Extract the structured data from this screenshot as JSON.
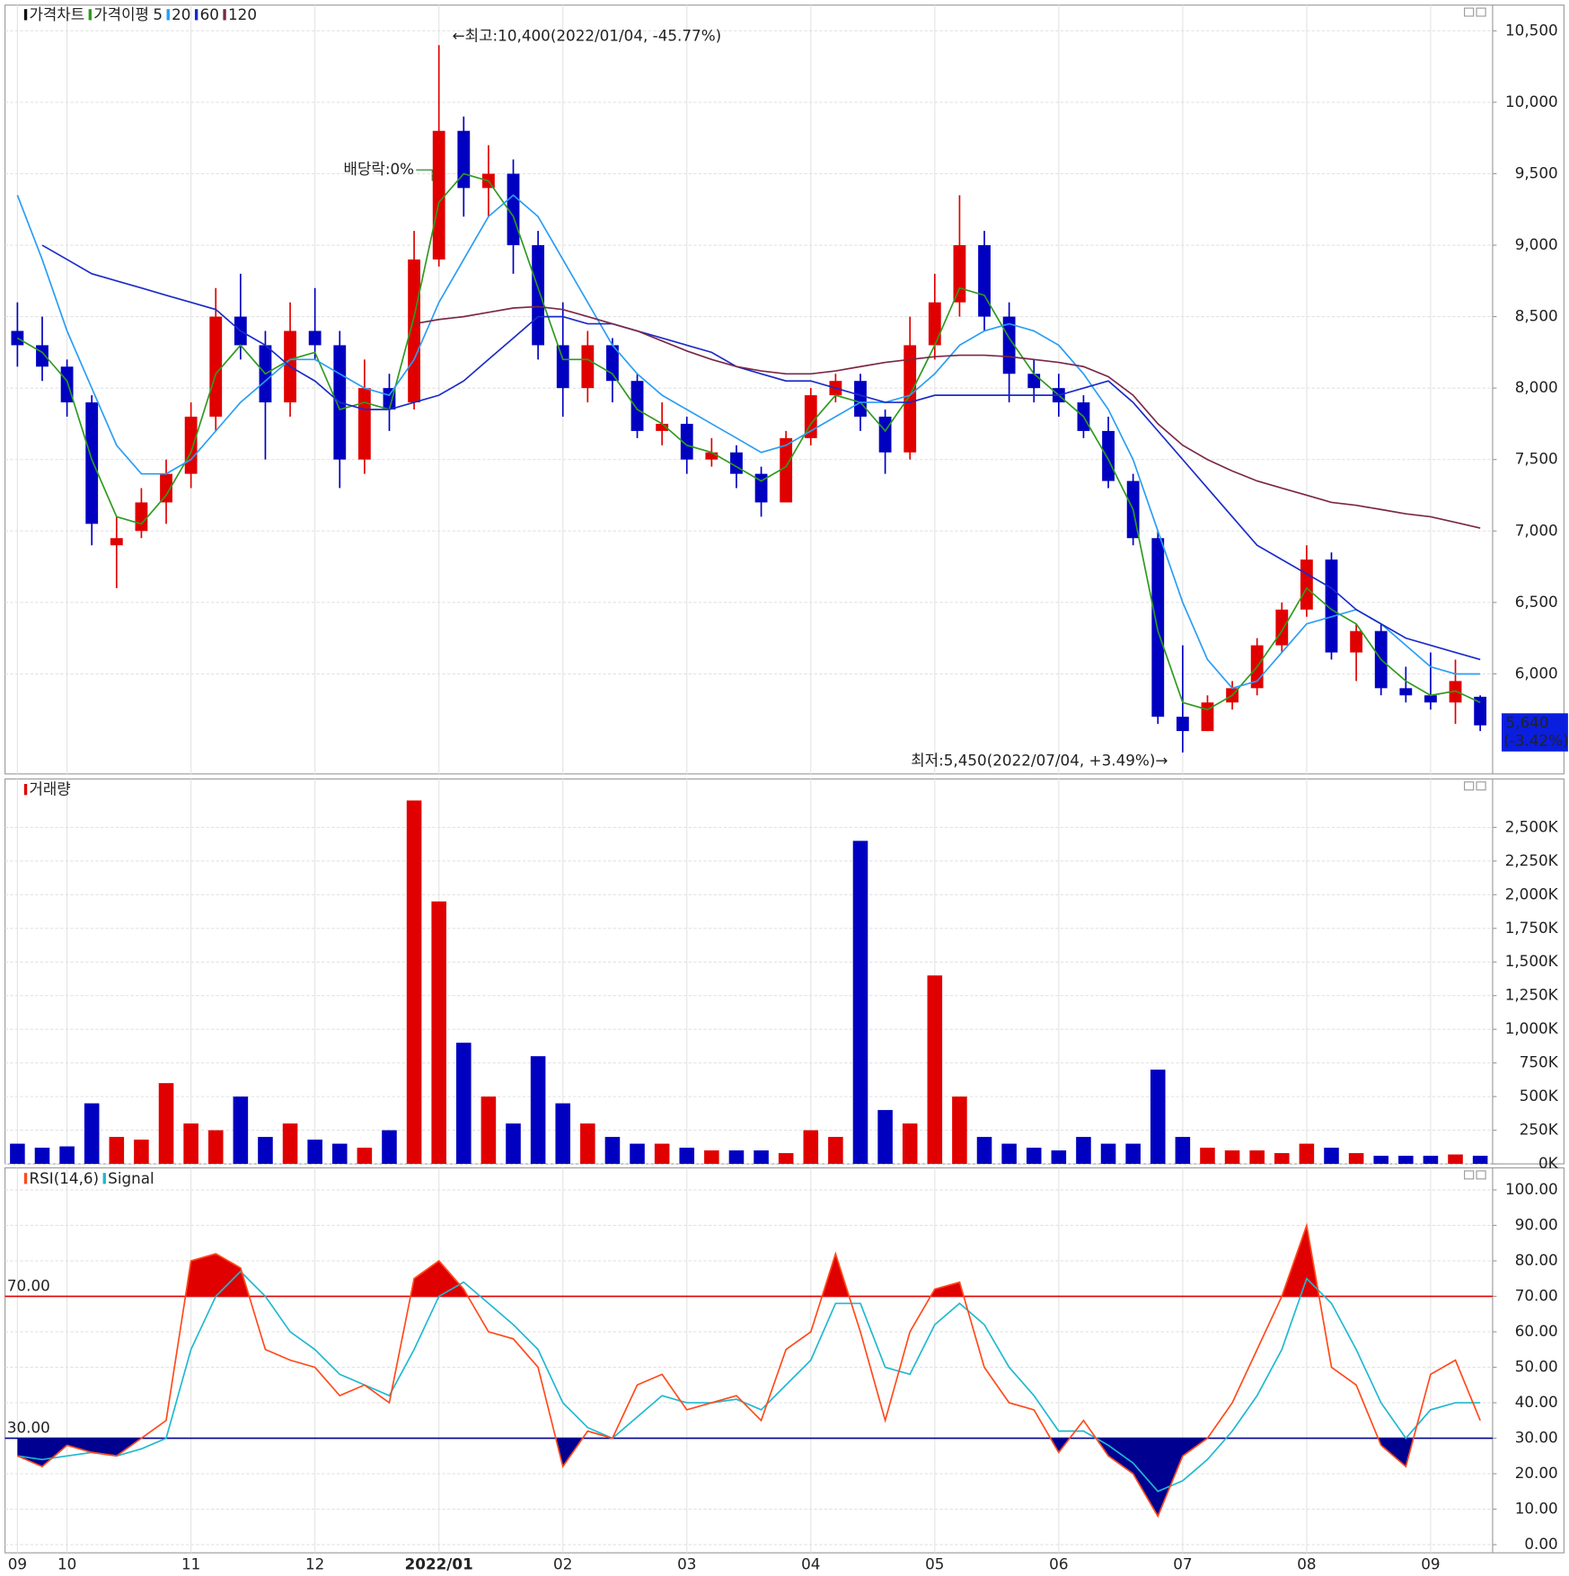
{
  "chart_data": [
    {
      "type": "candlestick",
      "title": "가격차트",
      "ma_label": "가격이평",
      "up_color": "#e00000",
      "down_color": "#0000c0",
      "categories": [
        "09",
        null,
        "10",
        null,
        null,
        null,
        null,
        "11",
        null,
        null,
        null,
        null,
        "12",
        null,
        null,
        null,
        null,
        "2022/01",
        null,
        null,
        null,
        null,
        "02",
        null,
        null,
        null,
        null,
        "03",
        null,
        null,
        null,
        null,
        "04",
        null,
        null,
        null,
        null,
        "05",
        null,
        null,
        null,
        null,
        "06",
        null,
        null,
        null,
        null,
        "07",
        null,
        null,
        null,
        null,
        "08",
        null,
        null,
        null,
        null,
        "09",
        null,
        null
      ],
      "open": [
        8400,
        8300,
        8150,
        7900,
        6900,
        7000,
        7200,
        7400,
        7800,
        8500,
        8300,
        7900,
        8400,
        8300,
        7500,
        8000,
        7900,
        8900,
        9800,
        9400,
        9500,
        9000,
        8300,
        8000,
        8300,
        8050,
        7700,
        7750,
        7500,
        7550,
        7400,
        7200,
        7650,
        7950,
        8050,
        7800,
        7550,
        8300,
        8600,
        9000,
        8500,
        8100,
        8000,
        7900,
        7700,
        7350,
        6950,
        5700,
        5600,
        5800,
        5900,
        6200,
        6450,
        6800,
        6150,
        6300,
        5900,
        5850,
        5800,
        5840
      ],
      "high": [
        8600,
        8500,
        8200,
        7950,
        7100,
        7300,
        7500,
        7900,
        8700,
        8800,
        8400,
        8600,
        8700,
        8400,
        8200,
        8100,
        9100,
        10400,
        9900,
        9700,
        9600,
        9100,
        8600,
        8400,
        8350,
        8100,
        7900,
        7800,
        7650,
        7600,
        7450,
        7700,
        8000,
        8100,
        8100,
        7850,
        8500,
        8800,
        9350,
        9100,
        8600,
        8200,
        8100,
        7950,
        7800,
        7400,
        7000,
        6200,
        5850,
        5950,
        6250,
        6500,
        6900,
        6850,
        6350,
        6350,
        6050,
        6150,
        6100,
        5850
      ],
      "low": [
        8150,
        8050,
        7800,
        6900,
        6600,
        6950,
        7050,
        7300,
        7700,
        8200,
        7500,
        7800,
        8200,
        7300,
        7400,
        7700,
        7850,
        8850,
        9200,
        9200,
        8800,
        8200,
        7800,
        7900,
        7900,
        7650,
        7600,
        7400,
        7450,
        7300,
        7100,
        7200,
        7600,
        7900,
        7700,
        7400,
        7500,
        8200,
        8500,
        8400,
        7900,
        7900,
        7800,
        7650,
        7300,
        6900,
        5650,
        5450,
        5600,
        5750,
        5850,
        6150,
        6400,
        6100,
        5950,
        5850,
        5800,
        5750,
        5650,
        5600
      ],
      "close": [
        8300,
        8150,
        7900,
        7050,
        6950,
        7200,
        7400,
        7800,
        8500,
        8300,
        7900,
        8400,
        8300,
        7500,
        8000,
        7850,
        8900,
        9800,
        9400,
        9500,
        9000,
        8300,
        8000,
        8300,
        8050,
        7700,
        7750,
        7500,
        7550,
        7400,
        7200,
        7650,
        7950,
        8050,
        7800,
        7550,
        8300,
        8600,
        9000,
        8500,
        8100,
        8000,
        7900,
        7700,
        7350,
        6950,
        5700,
        5600,
        5800,
        5900,
        6200,
        6450,
        6800,
        6150,
        6300,
        5900,
        5850,
        5800,
        5950,
        5640
      ],
      "series": [
        {
          "name": "5",
          "color": "#2e9a1e",
          "values": [
            8350,
            8250,
            8050,
            7500,
            7100,
            7050,
            7250,
            7550,
            8100,
            8300,
            8100,
            8200,
            8250,
            7850,
            7900,
            7850,
            8500,
            9300,
            9500,
            9450,
            9200,
            8700,
            8200,
            8200,
            8100,
            7850,
            7750,
            7600,
            7550,
            7450,
            7350,
            7450,
            7750,
            7950,
            7900,
            7700,
            7950,
            8300,
            8700,
            8650,
            8350,
            8100,
            7950,
            7800,
            7500,
            7150,
            6300,
            5800,
            5750,
            5850,
            6050,
            6300,
            6600,
            6450,
            6350,
            6100,
            5950,
            5850,
            5880,
            5800
          ]
        },
        {
          "name": "20",
          "color": "#2a9df4",
          "values": [
            9350,
            8900,
            8400,
            8000,
            7600,
            7400,
            7400,
            7500,
            7700,
            7900,
            8050,
            8200,
            8200,
            8100,
            8000,
            7950,
            8200,
            8600,
            8900,
            9200,
            9350,
            9200,
            8900,
            8600,
            8300,
            8100,
            7950,
            7850,
            7750,
            7650,
            7550,
            7600,
            7700,
            7800,
            7900,
            7900,
            7950,
            8100,
            8300,
            8400,
            8450,
            8400,
            8300,
            8100,
            7850,
            7500,
            7000,
            6500,
            6100,
            5900,
            5950,
            6150,
            6350,
            6400,
            6450,
            6350,
            6200,
            6050,
            6000,
            6000
          ]
        },
        {
          "name": "60",
          "color": "#1a2bc8",
          "values": [
            null,
            9000,
            8900,
            8800,
            8750,
            8700,
            8650,
            8600,
            8550,
            8400,
            8300,
            8150,
            8050,
            7900,
            7850,
            7850,
            7900,
            7950,
            8050,
            8200,
            8350,
            8500,
            8500,
            8450,
            8450,
            8400,
            8350,
            8300,
            8250,
            8150,
            8100,
            8050,
            8050,
            8000,
            7950,
            7900,
            7900,
            7950,
            7950,
            7950,
            7950,
            7950,
            7950,
            8000,
            8050,
            7900,
            7700,
            7500,
            7300,
            7100,
            6900,
            6800,
            6700,
            6600,
            6450,
            6350,
            6250,
            6200,
            6150,
            6100
          ]
        },
        {
          "name": "120",
          "color": "#7a2848",
          "values": [
            null,
            null,
            null,
            null,
            null,
            null,
            null,
            null,
            null,
            null,
            null,
            null,
            null,
            null,
            null,
            null,
            8450,
            8480,
            8500,
            8530,
            8560,
            8570,
            8550,
            8500,
            8450,
            8400,
            8330,
            8260,
            8200,
            8150,
            8120,
            8100,
            8100,
            8120,
            8150,
            8180,
            8200,
            8220,
            8230,
            8230,
            8220,
            8200,
            8180,
            8150,
            8080,
            7950,
            7750,
            7600,
            7500,
            7420,
            7350,
            7300,
            7250,
            7200,
            7180,
            7150,
            7120,
            7100,
            7060,
            7020
          ]
        }
      ],
      "annotations": [
        {
          "text": "←최고:10,400(2022/01/04, -45.77%)",
          "color": "#e00000"
        },
        {
          "text": "배당락:0%",
          "color": "#1a7a1a"
        },
        {
          "text": "최저:5,450(2022/07/04, +3.49%)→",
          "color": "#0000c0"
        }
      ],
      "current_price": {
        "value": 5640,
        "label": "5,640"
      },
      "current_change": "(-3.42%)",
      "ylim": [
        5300,
        10680
      ],
      "yticks": [
        {
          "value": 6000,
          "label": "6,000"
        },
        {
          "value": 6500,
          "label": "6,500"
        },
        {
          "value": 7000,
          "label": "7,000"
        },
        {
          "value": 7500,
          "label": "7,500"
        },
        {
          "value": 8000,
          "label": "8,000"
        },
        {
          "value": 8500,
          "label": "8,500"
        },
        {
          "value": 9000,
          "label": "9,000"
        },
        {
          "value": 9500,
          "label": "9,500"
        },
        {
          "value": 10000,
          "label": "10,000"
        },
        {
          "value": 10500,
          "label": "10,500"
        }
      ],
      "grid": true
    },
    {
      "type": "bar",
      "title": "거래량",
      "values": [
        150000,
        120000,
        130000,
        450000,
        200000,
        180000,
        600000,
        300000,
        250000,
        500000,
        200000,
        300000,
        180000,
        150000,
        120000,
        250000,
        2700000,
        1950000,
        900000,
        500000,
        300000,
        800000,
        450000,
        300000,
        200000,
        150000,
        150000,
        120000,
        100000,
        100000,
        100000,
        80000,
        250000,
        200000,
        2400000,
        400000,
        300000,
        1400000,
        500000,
        200000,
        150000,
        120000,
        100000,
        200000,
        150000,
        150000,
        700000,
        200000,
        120000,
        100000,
        100000,
        80000,
        150000,
        120000,
        80000,
        60000,
        60000,
        60000,
        70000,
        60000
      ],
      "ylim": [
        0,
        2860000
      ],
      "yticks": [
        {
          "value": 0,
          "label": "0K"
        },
        {
          "value": 250000,
          "label": "250K"
        },
        {
          "value": 500000,
          "label": "500K"
        },
        {
          "value": 750000,
          "label": "750K"
        },
        {
          "value": 1000000,
          "label": "1,000K"
        },
        {
          "value": 1250000,
          "label": "1,250K"
        },
        {
          "value": 1500000,
          "label": "1,500K"
        },
        {
          "value": 1750000,
          "label": "1,750K"
        },
        {
          "value": 2000000,
          "label": "2,000K"
        },
        {
          "value": 2250000,
          "label": "2,250K"
        },
        {
          "value": 2500000,
          "label": "2,500K"
        }
      ],
      "grid": true
    },
    {
      "type": "line",
      "series": [
        {
          "name": "RSI(14,6)",
          "color": "#ff4a1a",
          "values": [
            25,
            22,
            28,
            26,
            25,
            30,
            35,
            80,
            82,
            78,
            55,
            52,
            50,
            42,
            45,
            40,
            75,
            80,
            72,
            60,
            58,
            50,
            22,
            32,
            30,
            45,
            48,
            38,
            40,
            42,
            35,
            55,
            60,
            82,
            60,
            35,
            60,
            72,
            74,
            50,
            40,
            38,
            26,
            35,
            25,
            20,
            8,
            25,
            30,
            40,
            55,
            70,
            90,
            50,
            45,
            28,
            22,
            48,
            52,
            35
          ]
        },
        {
          "name": "Signal",
          "color": "#20b8d0",
          "values": [
            25,
            24,
            25,
            26,
            25,
            27,
            30,
            55,
            70,
            77,
            70,
            60,
            55,
            48,
            45,
            42,
            55,
            70,
            74,
            68,
            62,
            55,
            40,
            33,
            30,
            36,
            42,
            40,
            40,
            41,
            38,
            45,
            52,
            68,
            68,
            50,
            48,
            62,
            68,
            62,
            50,
            42,
            32,
            32,
            28,
            23,
            15,
            18,
            24,
            32,
            42,
            55,
            75,
            68,
            55,
            40,
            30,
            38,
            40,
            40
          ]
        }
      ],
      "levels": [
        {
          "value": 70,
          "label": "70.00",
          "color": "#e00000",
          "fill": "above"
        },
        {
          "value": 30,
          "label": "30.00",
          "color": "#000090",
          "fill": "below"
        }
      ],
      "ylim": [
        -2.3,
        106.2
      ],
      "yticks": [
        {
          "value": 0,
          "label": "0.00"
        },
        {
          "value": 10,
          "label": "10.00"
        },
        {
          "value": 20,
          "label": "20.00"
        },
        {
          "value": 30,
          "label": "30.00"
        },
        {
          "value": 40,
          "label": "40.00"
        },
        {
          "value": 50,
          "label": "50.00"
        },
        {
          "value": 60,
          "label": "60.00"
        },
        {
          "value": 70,
          "label": "70.00"
        },
        {
          "value": 80,
          "label": "80.00"
        },
        {
          "value": 90,
          "label": "90.00"
        },
        {
          "value": 100,
          "label": "100.00"
        }
      ],
      "grid": true
    }
  ]
}
